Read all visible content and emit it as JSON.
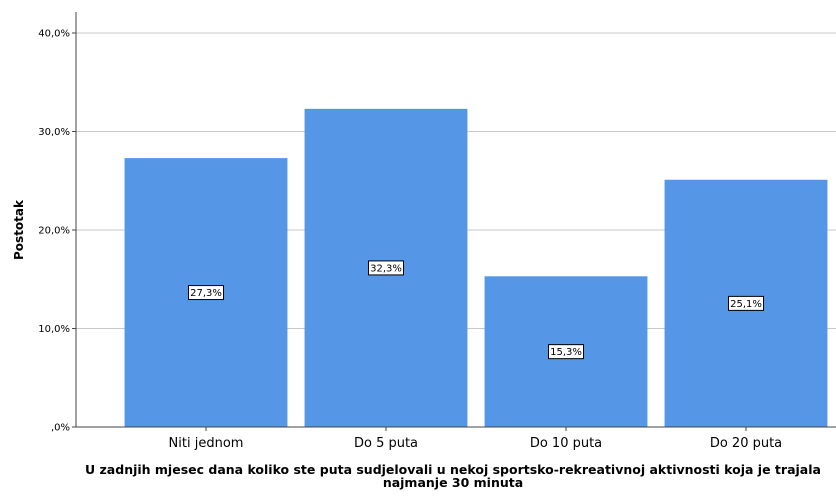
{
  "chart_data": {
    "type": "bar",
    "categories": [
      "Niti jednom",
      "Do 5 puta",
      "Do 10 puta",
      "Do 20 puta"
    ],
    "values": [
      27.3,
      32.3,
      15.3,
      25.1
    ],
    "data_labels": [
      "27,3%",
      "32,3%",
      "15,3%",
      "25,1%"
    ],
    "ylabel": "Postotak",
    "xlabel": "U zadnjih mjesec dana koliko ste puta sudjelovali u nekoj sportsko-rekreativnoj aktivnosti koja je trajala najmanje 30 minuta",
    "ylim": [
      0,
      40
    ],
    "yticks": [
      0,
      10,
      20,
      30,
      40
    ],
    "ytick_labels": [
      ",0%",
      "10,0%",
      "20,0%",
      "30,0%",
      "40,0%"
    ],
    "grid": true,
    "bar_color": "#5596e6"
  }
}
